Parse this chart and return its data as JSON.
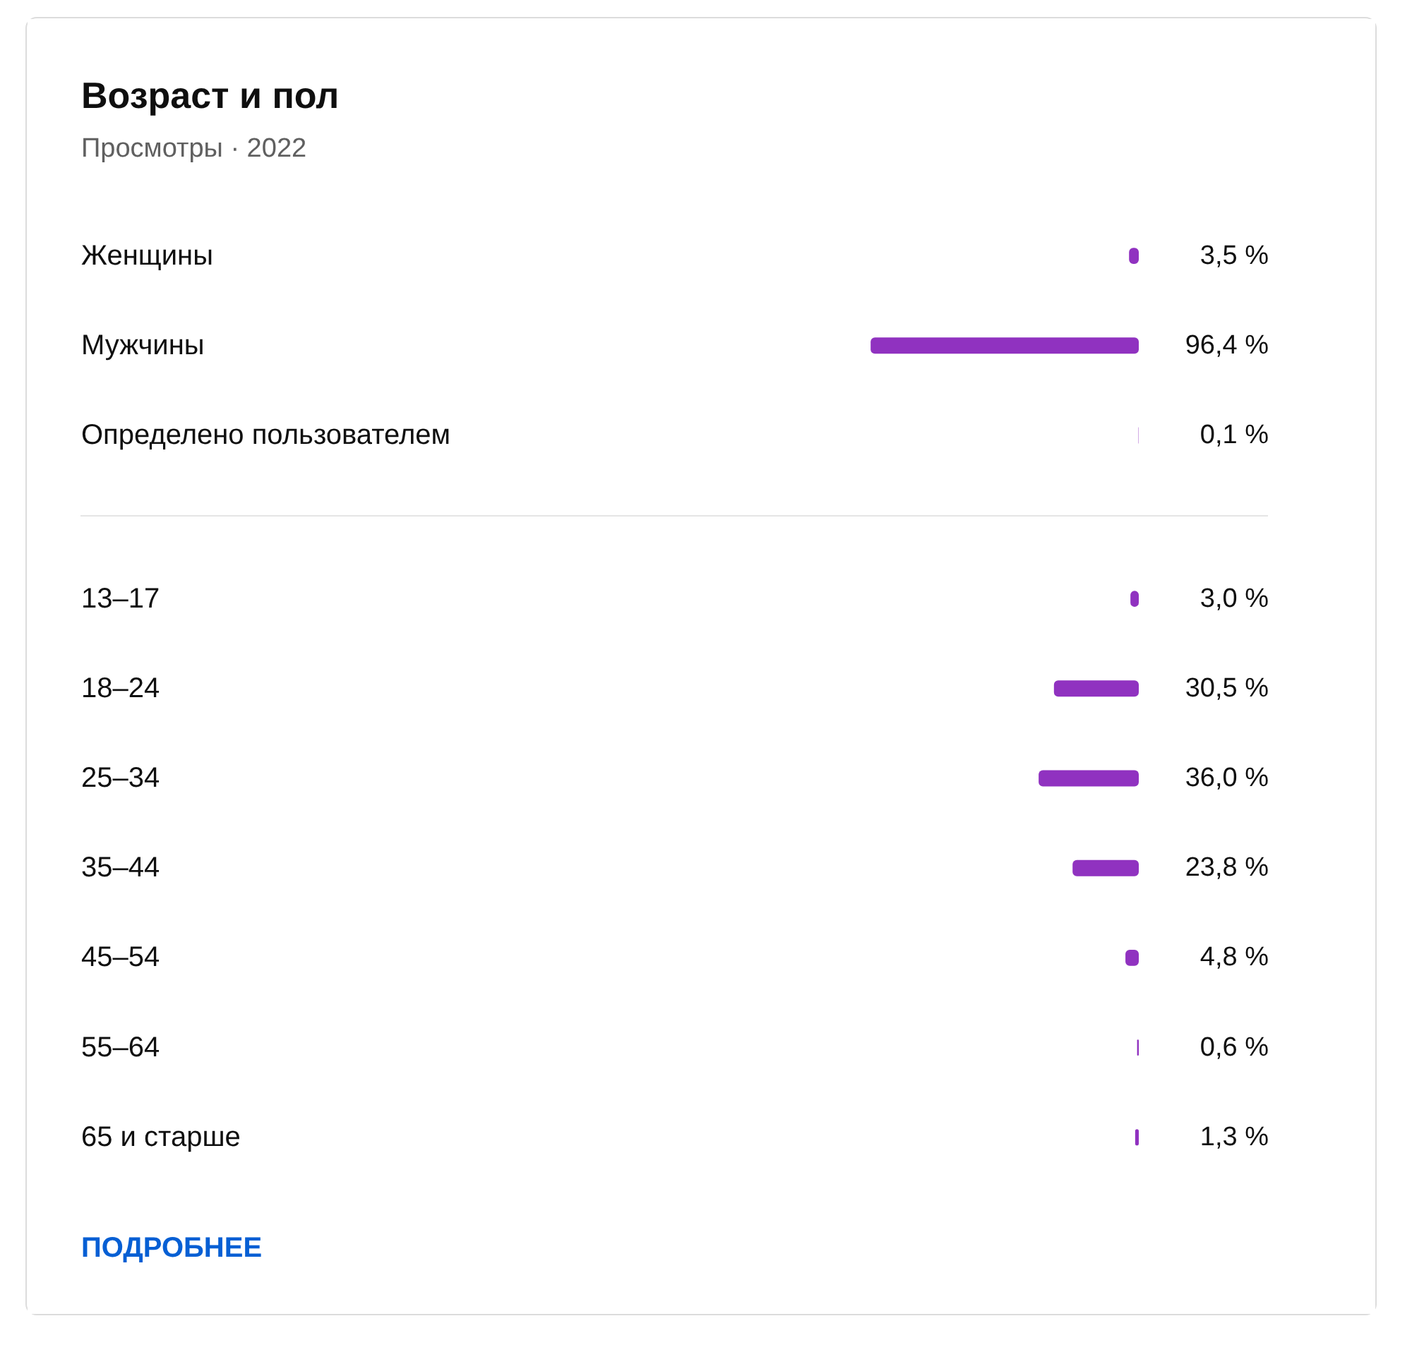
{
  "chart_data": [
    {
      "type": "bar",
      "orientation": "horizontal",
      "title": "Возраст и пол",
      "subtitle": "Просмотры · 2022",
      "categories": [
        "Женщины",
        "Мужчины",
        "Определено пользователем"
      ],
      "values": [
        3.5,
        96.4,
        0.1
      ],
      "value_labels": [
        "3,5 %",
        "96,4 %",
        "0,1 %"
      ],
      "color": "#9032c0",
      "tick_labels": "y"
    },
    {
      "type": "bar",
      "orientation": "horizontal",
      "categories": [
        "13–17",
        "18–24",
        "25–34",
        "35–44",
        "45–54",
        "55–64",
        "65 и старше"
      ],
      "values": [
        3.0,
        30.5,
        36.0,
        23.8,
        4.8,
        0.6,
        1.3
      ],
      "value_labels": [
        "3,0 %",
        "30,5 %",
        "36,0 %",
        "23,8 %",
        "4,8 %",
        "0,6 %",
        "1,3 %"
      ],
      "color": "#9032c0",
      "tick_labels": "y",
      "annotations": [
        "ПОДРОБНЕЕ"
      ]
    }
  ]
}
